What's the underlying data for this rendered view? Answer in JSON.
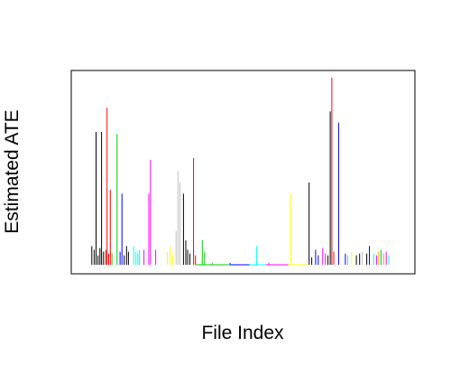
{
  "chart_data": {
    "type": "bar",
    "title": "",
    "xlabel": "File Index",
    "ylabel": "Estimated ATE",
    "x_axis_visible": false,
    "y_axis_visible": false,
    "grid": false,
    "legend": "none",
    "ylim": [
      0,
      1
    ],
    "xlim": [
      0,
      100
    ],
    "bars": [
      {
        "x": 3.3,
        "value": 0.1,
        "color": "#000000"
      },
      {
        "x": 4.0,
        "value": 0.08,
        "color": "#000000"
      },
      {
        "x": 4.6,
        "value": 0.71,
        "color": "#000000"
      },
      {
        "x": 5.2,
        "value": 0.05,
        "color": "#000000"
      },
      {
        "x": 5.8,
        "value": 0.09,
        "color": "#000000"
      },
      {
        "x": 6.3,
        "value": 0.71,
        "color": "#000000"
      },
      {
        "x": 6.9,
        "value": 0.07,
        "color": "#000000"
      },
      {
        "x": 7.6,
        "value": 0.08,
        "color": "#ff0000"
      },
      {
        "x": 8.0,
        "value": 0.84,
        "color": "#ff0000"
      },
      {
        "x": 8.5,
        "value": 0.06,
        "color": "#ff0000"
      },
      {
        "x": 9.0,
        "value": 0.4,
        "color": "#ff0000"
      },
      {
        "x": 9.5,
        "value": 0.06,
        "color": "#00cd00"
      },
      {
        "x": 11.1,
        "value": 0.7,
        "color": "#00cd00"
      },
      {
        "x": 12.0,
        "value": 0.07,
        "color": "#0000ff"
      },
      {
        "x": 12.6,
        "value": 0.38,
        "color": "#0000ff"
      },
      {
        "x": 13.3,
        "value": 0.05,
        "color": "#000000"
      },
      {
        "x": 14.0,
        "value": 0.1,
        "color": "#000000"
      },
      {
        "x": 14.6,
        "value": 0.07,
        "color": "#000000"
      },
      {
        "x": 16.2,
        "value": 0.1,
        "color": "#00ffff"
      },
      {
        "x": 16.9,
        "value": 0.07,
        "color": "#00ffff"
      },
      {
        "x": 17.5,
        "value": 0.06,
        "color": "#00ffff"
      },
      {
        "x": 18.0,
        "value": 0.08,
        "color": "#00ffff"
      },
      {
        "x": 19.4,
        "value": 0.08,
        "color": "#ff00ff"
      },
      {
        "x": 20.9,
        "value": 0.38,
        "color": "#ff00ff"
      },
      {
        "x": 21.4,
        "value": 0.56,
        "color": "#ff00ff"
      },
      {
        "x": 23.0,
        "value": 0.08,
        "color": "#ff00ff"
      },
      {
        "x": 26.6,
        "value": 0.07,
        "color": "#ffff00"
      },
      {
        "x": 27.4,
        "value": 0.1,
        "color": "#ffff00"
      },
      {
        "x": 28.3,
        "value": 0.06,
        "color": "#ffff00"
      },
      {
        "x": 29.3,
        "value": 0.18,
        "color": "#bebebe"
      },
      {
        "x": 29.9,
        "value": 0.5,
        "color": "#bebebe"
      },
      {
        "x": 30.5,
        "value": 0.44,
        "color": "#bebebe"
      },
      {
        "x": 31.6,
        "value": 0.38,
        "color": "#000000"
      },
      {
        "x": 32.3,
        "value": 0.13,
        "color": "#000000"
      },
      {
        "x": 32.9,
        "value": 0.08,
        "color": "#000000"
      },
      {
        "x": 33.6,
        "value": 0.06,
        "color": "#000000"
      },
      {
        "x": 34.7,
        "value": 0.57,
        "color": "#ff0000"
      },
      {
        "x": 35.3,
        "value": 0.05,
        "color": "#ff0000"
      },
      {
        "x": 37.4,
        "value": 0.13,
        "color": "#00cd00"
      },
      {
        "x": 38.1,
        "value": 0.07,
        "color": "#00cd00"
      },
      {
        "x": 40.5,
        "value": 0.01,
        "color": "#00cd00"
      },
      {
        "x": 46.0,
        "value": 0.01,
        "color": "#0000ff"
      },
      {
        "x": 54.2,
        "value": 0.1,
        "color": "#00ffff"
      },
      {
        "x": 58.0,
        "value": 0.01,
        "color": "#ff00ff"
      },
      {
        "x": 64.7,
        "value": 0.38,
        "color": "#ffff00"
      },
      {
        "x": 65.5,
        "value": 0.01,
        "color": "#ffff00"
      },
      {
        "x": 70.4,
        "value": 0.44,
        "color": "#000000"
      },
      {
        "x": 71.2,
        "value": 0.04,
        "color": "#000000"
      },
      {
        "x": 72.4,
        "value": 0.08,
        "color": "#0000ff"
      },
      {
        "x": 73.2,
        "value": 0.05,
        "color": "#0000ff"
      },
      {
        "x": 74.6,
        "value": 0.09,
        "color": "#ff00ff"
      },
      {
        "x": 75.4,
        "value": 0.06,
        "color": "#ff00ff"
      },
      {
        "x": 76.2,
        "value": 0.05,
        "color": "#000000"
      },
      {
        "x": 76.9,
        "value": 0.82,
        "color": "#000000"
      },
      {
        "x": 77.4,
        "value": 1.0,
        "color": "#ff0000"
      },
      {
        "x": 78.0,
        "value": 0.07,
        "color": "#ff0000"
      },
      {
        "x": 79.5,
        "value": 0.76,
        "color": "#0000ff"
      },
      {
        "x": 81.6,
        "value": 0.06,
        "color": "#0000ff"
      },
      {
        "x": 82.3,
        "value": 0.05,
        "color": "#00ffff"
      },
      {
        "x": 83.5,
        "value": 0.07,
        "color": "#ffff00"
      },
      {
        "x": 85.0,
        "value": 0.05,
        "color": "#000000"
      },
      {
        "x": 86.0,
        "value": 0.06,
        "color": "#000000"
      },
      {
        "x": 86.8,
        "value": 0.07,
        "color": "#bebebe"
      },
      {
        "x": 88.2,
        "value": 0.06,
        "color": "#000000"
      },
      {
        "x": 89.0,
        "value": 0.1,
        "color": "#0000ff"
      },
      {
        "x": 90.3,
        "value": 0.06,
        "color": "#00ffff"
      },
      {
        "x": 91.2,
        "value": 0.05,
        "color": "#ff00ff"
      },
      {
        "x": 91.9,
        "value": 0.07,
        "color": "#ffa500"
      },
      {
        "x": 92.6,
        "value": 0.08,
        "color": "#00cd00"
      },
      {
        "x": 93.4,
        "value": 0.06,
        "color": "#ffa500"
      },
      {
        "x": 94.2,
        "value": 0.07,
        "color": "#ff00ff"
      },
      {
        "x": 95.0,
        "value": 0.05,
        "color": "#00ffff"
      }
    ],
    "flat_segments": [
      {
        "x_start": 35.5,
        "x_end": 46.0,
        "color": "#00cd00"
      },
      {
        "x_start": 46.0,
        "x_end": 52.0,
        "color": "#0000ff"
      },
      {
        "x_start": 52.0,
        "x_end": 57.0,
        "color": "#00ffff"
      },
      {
        "x_start": 57.0,
        "x_end": 64.0,
        "color": "#ff00ff"
      },
      {
        "x_start": 64.0,
        "x_end": 70.0,
        "color": "#ffff00"
      }
    ]
  }
}
